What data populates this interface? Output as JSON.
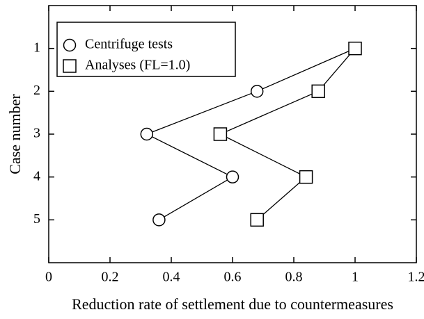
{
  "chart_data": {
    "type": "line",
    "x_label": "Reduction rate of settlement due to countermeasures",
    "y_label": "Case number",
    "y": [
      1,
      2,
      3,
      4,
      5
    ],
    "series": [
      {
        "name": "Centrifuge tests",
        "marker": "circle",
        "color": "#000000",
        "values": [
          1.0,
          0.68,
          0.32,
          0.6,
          0.36
        ]
      },
      {
        "name": "Analyses (FL=1.0)",
        "marker": "square",
        "color": "#000000",
        "values": [
          1.0,
          0.88,
          0.56,
          0.84,
          0.68
        ]
      }
    ],
    "xlim": [
      0,
      1.2
    ],
    "xticks": [
      0,
      0.2,
      0.4,
      0.6,
      0.8,
      1,
      1.2
    ],
    "ylim": [
      0,
      6
    ],
    "yticks": [
      1,
      2,
      3,
      4,
      5
    ],
    "y_inverted": true,
    "grid": false,
    "legend": "upper left"
  }
}
